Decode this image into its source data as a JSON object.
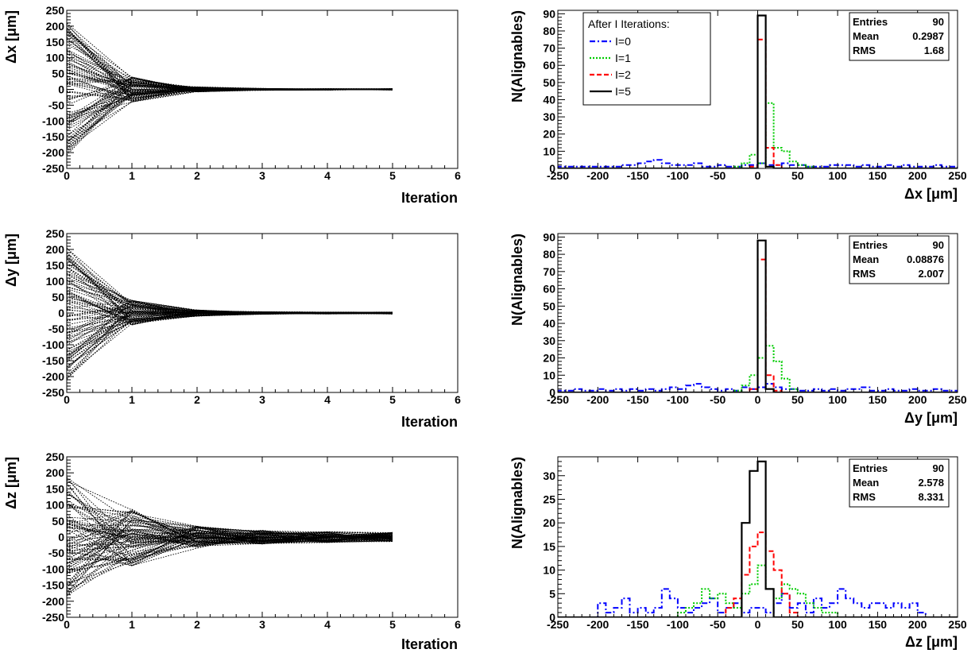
{
  "colors": {
    "I0": "#0000ff",
    "I1": "#00cc00",
    "I2": "#ff0000",
    "I5": "#000000",
    "trajectory": "#000000"
  },
  "chart_data": [
    {
      "type": "line",
      "ylabel": "Δx [μm]",
      "xlabel": "Iteration",
      "xlim": [
        0,
        6
      ],
      "ylim": [
        -250,
        250
      ],
      "x_ticks": [
        "0",
        "1",
        "2",
        "3",
        "4",
        "5",
        "6"
      ],
      "y_ticks": [
        "-250",
        "-200",
        "-150",
        "-100",
        "-50",
        "0",
        "50",
        "100",
        "150",
        "200",
        "250"
      ],
      "n_traces": 90,
      "x": [
        0,
        1,
        2,
        3,
        4,
        5
      ],
      "initial_spread": 210,
      "spread_by_iteration": [
        210,
        40,
        8,
        3,
        2,
        2
      ],
      "line_style": "dotted"
    },
    {
      "type": "bar",
      "ylabel": "N(Alignables)",
      "xlabel": "Δx [μm]",
      "xlim": [
        -250,
        250
      ],
      "ylim": [
        0,
        92
      ],
      "x_ticks": [
        "-250",
        "-200",
        "-150",
        "-100",
        "-50",
        "0",
        "50",
        "100",
        "150",
        "200",
        "250"
      ],
      "y_ticks": [
        "0",
        "10",
        "20",
        "30",
        "40",
        "50",
        "60",
        "70",
        "80",
        "90"
      ],
      "bins": {
        "low": -250,
        "width": 10
      },
      "legend": {
        "title": "After I Iterations:",
        "entries": [
          "I=0",
          "I=1",
          "I=2",
          "I=5"
        ]
      },
      "stats": {
        "entries_label": "Entries",
        "entries": "90",
        "mean_label": "Mean",
        "mean": "0.2987",
        "rms_label": "RMS",
        "rms": "1.68"
      },
      "series": [
        {
          "name": "I=0",
          "style": "dashdot",
          "values": [
            1,
            1,
            1,
            1,
            1,
            1,
            1,
            1,
            2,
            2,
            3,
            4,
            5,
            3,
            2,
            2,
            2,
            3,
            1,
            1,
            2,
            1,
            1,
            2,
            2,
            3,
            2,
            2,
            3,
            2,
            2,
            1,
            1,
            1,
            2,
            2,
            2,
            1,
            2,
            1,
            1,
            2,
            1,
            2,
            1,
            1,
            1,
            2,
            1,
            1
          ]
        },
        {
          "name": "I=1",
          "style": "dotted",
          "values": [
            0,
            0,
            0,
            0,
            0,
            0,
            0,
            0,
            0,
            0,
            0,
            0,
            0,
            0,
            0,
            0,
            0,
            0,
            0,
            0,
            0,
            0,
            1,
            3,
            8,
            3,
            38,
            12,
            10,
            4,
            2,
            1,
            0,
            0,
            0,
            0,
            0,
            0,
            0,
            0,
            0,
            0,
            0,
            0,
            0,
            0,
            0,
            0,
            0,
            0
          ]
        },
        {
          "name": "I=2",
          "style": "dashed",
          "values": [
            0,
            0,
            0,
            0,
            0,
            0,
            0,
            0,
            0,
            0,
            0,
            0,
            0,
            0,
            0,
            0,
            0,
            0,
            0,
            0,
            0,
            0,
            0,
            0,
            1,
            75,
            12,
            2,
            0,
            0,
            0,
            0,
            0,
            0,
            0,
            0,
            0,
            0,
            0,
            0,
            0,
            0,
            0,
            0,
            0,
            0,
            0,
            0,
            0,
            0
          ]
        },
        {
          "name": "I=5",
          "style": "solid",
          "values": [
            0,
            0,
            0,
            0,
            0,
            0,
            0,
            0,
            0,
            0,
            0,
            0,
            0,
            0,
            0,
            0,
            0,
            0,
            0,
            0,
            0,
            0,
            0,
            0,
            0,
            89,
            1,
            0,
            0,
            0,
            0,
            0,
            0,
            0,
            0,
            0,
            0,
            0,
            0,
            0,
            0,
            0,
            0,
            0,
            0,
            0,
            0,
            0,
            0,
            0
          ]
        }
      ]
    },
    {
      "type": "line",
      "ylabel": "Δy [μm]",
      "xlabel": "Iteration",
      "xlim": [
        0,
        6
      ],
      "ylim": [
        -250,
        250
      ],
      "x_ticks": [
        "0",
        "1",
        "2",
        "3",
        "4",
        "5",
        "6"
      ],
      "y_ticks": [
        "-250",
        "-200",
        "-150",
        "-100",
        "-50",
        "0",
        "50",
        "100",
        "150",
        "200",
        "250"
      ],
      "n_traces": 90,
      "x": [
        0,
        1,
        2,
        3,
        4,
        5
      ],
      "initial_spread": 210,
      "spread_by_iteration": [
        210,
        40,
        10,
        4,
        3,
        3
      ],
      "line_style": "dotted"
    },
    {
      "type": "bar",
      "ylabel": "N(Alignables)",
      "xlabel": "Δy [μm]",
      "xlim": [
        -250,
        250
      ],
      "ylim": [
        0,
        92
      ],
      "x_ticks": [
        "-250",
        "-200",
        "-150",
        "-100",
        "-50",
        "0",
        "50",
        "100",
        "150",
        "200",
        "250"
      ],
      "y_ticks": [
        "0",
        "10",
        "20",
        "30",
        "40",
        "50",
        "60",
        "70",
        "80",
        "90"
      ],
      "bins": {
        "low": -250,
        "width": 10
      },
      "stats": {
        "entries_label": "Entries",
        "entries": "90",
        "mean_label": "Mean",
        "mean": "0.08876",
        "rms_label": "RMS",
        "rms": "2.007"
      },
      "series": [
        {
          "name": "I=0",
          "style": "dashdot",
          "values": [
            1,
            1,
            2,
            1,
            1,
            2,
            1,
            2,
            1,
            2,
            1,
            2,
            1,
            2,
            3,
            2,
            4,
            5,
            3,
            2,
            1,
            2,
            1,
            3,
            2,
            3,
            5,
            3,
            2,
            2,
            1,
            1,
            2,
            1,
            2,
            1,
            2,
            2,
            3,
            1,
            1,
            2,
            1,
            1,
            2,
            1,
            1,
            2,
            1,
            1
          ]
        },
        {
          "name": "I=1",
          "style": "dotted",
          "values": [
            0,
            0,
            0,
            0,
            0,
            0,
            0,
            0,
            0,
            0,
            0,
            0,
            0,
            0,
            0,
            0,
            0,
            0,
            0,
            0,
            0,
            0,
            1,
            4,
            10,
            20,
            27,
            18,
            8,
            2,
            0,
            0,
            0,
            0,
            0,
            0,
            0,
            0,
            0,
            0,
            0,
            0,
            0,
            0,
            0,
            0,
            0,
            0,
            0,
            0
          ]
        },
        {
          "name": "I=2",
          "style": "dashed",
          "values": [
            0,
            0,
            0,
            0,
            0,
            0,
            0,
            0,
            0,
            0,
            0,
            0,
            0,
            0,
            0,
            0,
            0,
            0,
            0,
            0,
            0,
            0,
            0,
            0,
            2,
            77,
            10,
            1,
            0,
            0,
            0,
            0,
            0,
            0,
            0,
            0,
            0,
            0,
            0,
            0,
            0,
            0,
            0,
            0,
            0,
            0,
            0,
            0,
            0,
            0
          ]
        },
        {
          "name": "I=5",
          "style": "solid",
          "values": [
            0,
            0,
            0,
            0,
            0,
            0,
            0,
            0,
            0,
            0,
            0,
            0,
            0,
            0,
            0,
            0,
            0,
            0,
            0,
            0,
            0,
            0,
            0,
            0,
            0,
            88,
            2,
            0,
            0,
            0,
            0,
            0,
            0,
            0,
            0,
            0,
            0,
            0,
            0,
            0,
            0,
            0,
            0,
            0,
            0,
            0,
            0,
            0,
            0,
            0
          ]
        }
      ]
    },
    {
      "type": "line",
      "ylabel": "Δz [μm]",
      "xlabel": "Iteration",
      "xlim": [
        0,
        6
      ],
      "ylim": [
        -250,
        250
      ],
      "x_ticks": [
        "0",
        "1",
        "2",
        "3",
        "4",
        "5",
        "6"
      ],
      "y_ticks": [
        "-250",
        "-200",
        "-150",
        "-100",
        "-50",
        "0",
        "50",
        "100",
        "150",
        "200",
        "250"
      ],
      "n_traces": 90,
      "x": [
        0,
        1,
        2,
        3,
        4,
        5
      ],
      "initial_spread": 190,
      "spread_by_iteration": [
        190,
        90,
        35,
        22,
        17,
        15
      ],
      "line_style": "dotted"
    },
    {
      "type": "bar",
      "ylabel": "N(Alignables)",
      "xlabel": "Δz [μm]",
      "xlim": [
        -250,
        250
      ],
      "ylim": [
        0,
        34
      ],
      "x_ticks": [
        "-250",
        "-200",
        "-150",
        "-100",
        "-50",
        "0",
        "50",
        "100",
        "150",
        "200",
        "250"
      ],
      "y_ticks": [
        "0",
        "5",
        "10",
        "15",
        "20",
        "25",
        "30"
      ],
      "bins": {
        "low": -250,
        "width": 10
      },
      "stats": {
        "entries_label": "Entries",
        "entries": "90",
        "mean_label": "Mean",
        "mean": "2.578",
        "rms_label": "RMS",
        "rms": "8.331"
      },
      "series": [
        {
          "name": "I=0",
          "style": "dashdot",
          "values": [
            0,
            0,
            0,
            0,
            0,
            3,
            1,
            2,
            4,
            1,
            2,
            1,
            2,
            6,
            4,
            2,
            1,
            2,
            3,
            4,
            1,
            2,
            3,
            1,
            2,
            2,
            1,
            3,
            5,
            2,
            3,
            1,
            4,
            2,
            3,
            6,
            4,
            3,
            2,
            3,
            3,
            2,
            3,
            2,
            3,
            1,
            0,
            0,
            0,
            0
          ]
        },
        {
          "name": "I=1",
          "style": "dotted",
          "values": [
            0,
            0,
            0,
            0,
            0,
            0,
            0,
            0,
            0,
            0,
            0,
            0,
            0,
            0,
            0,
            1,
            2,
            3,
            6,
            4,
            5,
            3,
            2,
            5,
            7,
            11,
            6,
            4,
            7,
            6,
            5,
            3,
            2,
            1,
            1,
            0,
            0,
            0,
            0,
            0,
            0,
            0,
            0,
            0,
            0,
            0,
            0,
            0,
            0,
            0
          ]
        },
        {
          "name": "I=2",
          "style": "dashed",
          "values": [
            0,
            0,
            0,
            0,
            0,
            0,
            0,
            0,
            0,
            0,
            0,
            0,
            0,
            0,
            0,
            0,
            0,
            0,
            0,
            0,
            0,
            2,
            4,
            9,
            15,
            18,
            14,
            10,
            5,
            1,
            0,
            0,
            0,
            0,
            0,
            0,
            0,
            0,
            0,
            0,
            0,
            0,
            0,
            0,
            0,
            0,
            0,
            0,
            0,
            0
          ]
        },
        {
          "name": "I=5",
          "style": "solid",
          "values": [
            0,
            0,
            0,
            0,
            0,
            0,
            0,
            0,
            0,
            0,
            0,
            0,
            0,
            0,
            0,
            0,
            0,
            0,
            0,
            0,
            0,
            0,
            0,
            20,
            31,
            33,
            6,
            0,
            0,
            0,
            0,
            0,
            0,
            0,
            0,
            0,
            0,
            0,
            0,
            0,
            0,
            0,
            0,
            0,
            0,
            0,
            0,
            0,
            0,
            0
          ]
        }
      ]
    }
  ]
}
